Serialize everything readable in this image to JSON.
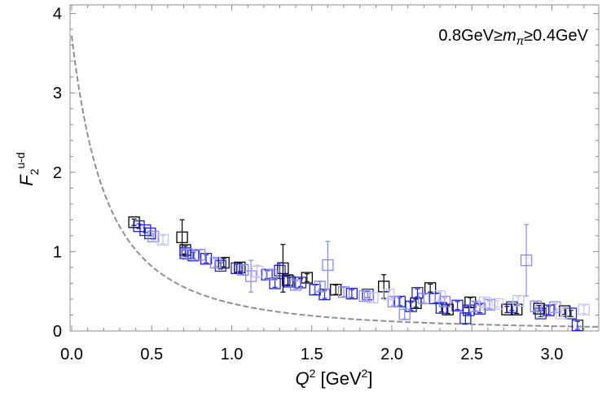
{
  "chart_data": {
    "type": "scatter",
    "xlabel": {
      "symbol": "Q",
      "sup": "2",
      "unit": " [GeV",
      "unit_sup": "2",
      "close": "]"
    },
    "ylabel": {
      "symbol": "F",
      "sub": "2",
      "sup": "u-d"
    },
    "annotation": {
      "left": "0.8GeV≥",
      "italic": "m",
      "sub": "π",
      "right": "≥0.4GeV"
    },
    "xlim": [
      0,
      3.3
    ],
    "ylim": [
      0,
      4.1
    ],
    "x_ticks": [
      "0.0",
      "0.5",
      "1.0",
      "1.5",
      "2.0",
      "2.5",
      "3.0"
    ],
    "y_ticks": [
      "0",
      "1",
      "2",
      "3",
      "4"
    ],
    "fit_curve": {
      "form": "dipole",
      "F0": 3.72,
      "M2": 0.44,
      "color": "#909090"
    },
    "series": [
      {
        "name": "mpi-high",
        "color": "#000000",
        "points": [
          [
            0.39,
            1.37,
            0.04
          ],
          [
            0.69,
            1.18,
            0.22
          ],
          [
            0.71,
            1.02,
            0.05
          ],
          [
            0.95,
            0.86,
            0.05
          ],
          [
            1.05,
            0.8,
            0.05
          ],
          [
            1.32,
            0.79,
            0.3
          ],
          [
            1.35,
            0.64,
            0.06
          ],
          [
            1.47,
            0.67,
            0.05
          ],
          [
            1.65,
            0.52,
            0.06
          ],
          [
            1.95,
            0.56,
            0.15
          ],
          [
            2.15,
            0.35,
            0.05
          ],
          [
            2.24,
            0.54,
            0.05
          ],
          [
            2.35,
            0.27,
            0.05
          ],
          [
            2.49,
            0.36,
            0.06
          ],
          [
            2.72,
            0.27,
            0.04
          ],
          [
            2.78,
            0.27,
            0.05
          ],
          [
            2.92,
            0.28,
            0.04
          ],
          [
            3.08,
            0.25,
            0.04
          ]
        ]
      },
      {
        "name": "mpi-mid",
        "color": "#1f1fcc",
        "points": [
          [
            0.42,
            1.32,
            0.03
          ],
          [
            0.46,
            1.27,
            0.03
          ],
          [
            0.49,
            1.23,
            0.03
          ],
          [
            0.71,
            0.98,
            0.04
          ],
          [
            0.76,
            0.95,
            0.04
          ],
          [
            0.84,
            0.91,
            0.05
          ],
          [
            0.93,
            0.82,
            0.04
          ],
          [
            1.03,
            0.79,
            0.05
          ],
          [
            1.22,
            0.71,
            0.05
          ],
          [
            1.27,
            0.6,
            0.05
          ],
          [
            1.3,
            0.76,
            0.1
          ],
          [
            1.36,
            0.62,
            0.05
          ],
          [
            1.43,
            0.61,
            0.05
          ],
          [
            1.52,
            0.52,
            0.06
          ],
          [
            1.58,
            0.46,
            0.05
          ],
          [
            1.75,
            0.47,
            0.05
          ],
          [
            1.85,
            0.46,
            0.04
          ],
          [
            2.05,
            0.37,
            0.05
          ],
          [
            2.12,
            0.31,
            0.05
          ],
          [
            2.16,
            0.48,
            0.05
          ],
          [
            2.27,
            0.41,
            0.06
          ],
          [
            2.31,
            0.29,
            0.05
          ],
          [
            2.41,
            0.32,
            0.05
          ],
          [
            2.46,
            0.16,
            0.07
          ],
          [
            2.55,
            0.28,
            0.05
          ],
          [
            2.75,
            0.3,
            0.04
          ],
          [
            2.93,
            0.22,
            0.04
          ],
          [
            2.98,
            0.26,
            0.05
          ],
          [
            3.16,
            0.07,
            0.05
          ],
          [
            2.48,
            0.26,
            0.05
          ],
          [
            3.12,
            0.22,
            0.04
          ]
        ]
      },
      {
        "name": "mpi-low",
        "color": "#8a8aee",
        "points": [
          [
            0.51,
            1.19,
            0.04
          ],
          [
            0.72,
            0.97,
            0.05
          ],
          [
            0.8,
            0.96,
            0.06
          ],
          [
            0.9,
            0.86,
            0.05
          ],
          [
            1.07,
            0.77,
            0.06
          ],
          [
            1.12,
            0.69,
            0.2
          ],
          [
            1.25,
            0.71,
            0.05
          ],
          [
            1.4,
            0.58,
            0.05
          ],
          [
            1.55,
            0.56,
            0.06
          ],
          [
            1.6,
            0.83,
            0.3
          ],
          [
            1.7,
            0.49,
            0.06
          ],
          [
            1.83,
            0.44,
            0.05
          ],
          [
            2.01,
            0.37,
            0.05
          ],
          [
            2.2,
            0.41,
            0.05
          ],
          [
            2.33,
            0.37,
            0.05
          ],
          [
            2.52,
            0.31,
            0.05
          ],
          [
            2.61,
            0.33,
            0.05
          ],
          [
            2.84,
            0.89,
            0.45
          ],
          [
            2.9,
            0.31,
            0.05
          ],
          [
            3.02,
            0.3,
            0.04
          ],
          [
            2.08,
            0.21,
            0.06
          ]
        ]
      },
      {
        "name": "mpi-faint",
        "color": "#c4c4f6",
        "points": [
          [
            0.57,
            1.15,
            0.05
          ],
          [
            1.16,
            0.75,
            0.08
          ],
          [
            1.88,
            0.42,
            0.05
          ],
          [
            1.98,
            0.46,
            0.05
          ],
          [
            2.3,
            0.44,
            0.05
          ],
          [
            2.58,
            0.36,
            0.05
          ],
          [
            2.79,
            0.38,
            0.05
          ],
          [
            3.06,
            0.22,
            0.04
          ],
          [
            3.2,
            0.27,
            0.05
          ],
          [
            2.66,
            0.34,
            0.04
          ]
        ]
      }
    ]
  }
}
